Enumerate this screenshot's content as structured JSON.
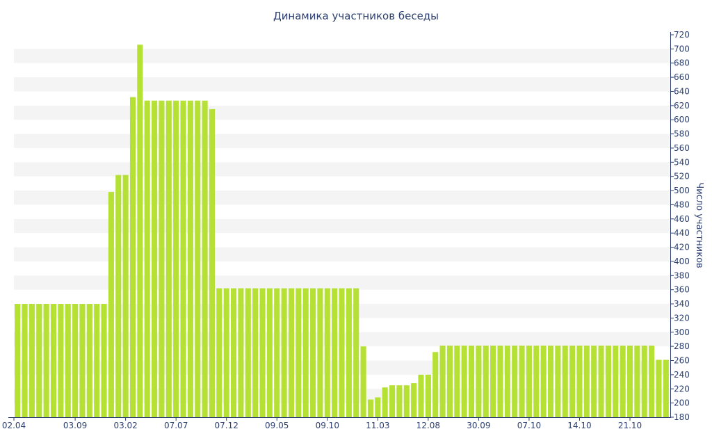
{
  "chart_data": {
    "type": "bar",
    "title": "Динамика участников беседы",
    "ylabel": "Число участников",
    "xlabel": "",
    "ylim": [
      180,
      720
    ],
    "y_ticks": [
      180,
      200,
      220,
      240,
      260,
      280,
      300,
      320,
      340,
      360,
      380,
      400,
      420,
      440,
      460,
      480,
      500,
      520,
      540,
      560,
      580,
      600,
      620,
      640,
      660,
      680,
      700,
      720
    ],
    "x_tick_labels": [
      {
        "index": 0,
        "label": "02.04"
      },
      {
        "index": 8,
        "label": "03.09"
      },
      {
        "index": 15,
        "label": "03.02"
      },
      {
        "index": 22,
        "label": "07.07"
      },
      {
        "index": 29,
        "label": "07.12"
      },
      {
        "index": 36,
        "label": "09.05"
      },
      {
        "index": 43,
        "label": "09.10"
      },
      {
        "index": 50,
        "label": "11.03"
      },
      {
        "index": 57,
        "label": "12.08"
      },
      {
        "index": 64,
        "label": "30.09"
      },
      {
        "index": 71,
        "label": "07.10"
      },
      {
        "index": 78,
        "label": "14.10"
      },
      {
        "index": 85,
        "label": "21.10"
      }
    ],
    "values": [
      340,
      340,
      340,
      340,
      340,
      340,
      340,
      340,
      340,
      340,
      340,
      340,
      340,
      498,
      522,
      522,
      632,
      706,
      627,
      627,
      627,
      627,
      627,
      627,
      627,
      627,
      627,
      615,
      362,
      362,
      362,
      362,
      362,
      362,
      362,
      362,
      362,
      362,
      362,
      362,
      362,
      362,
      362,
      362,
      362,
      362,
      362,
      362,
      280,
      205,
      208,
      222,
      225,
      225,
      225,
      228,
      240,
      240,
      272,
      281,
      281,
      281,
      281,
      281,
      281,
      281,
      281,
      281,
      281,
      281,
      281,
      281,
      281,
      281,
      281,
      281,
      281,
      281,
      281,
      281,
      281,
      281,
      281,
      281,
      281,
      281,
      281,
      281,
      281,
      261,
      261
    ],
    "grid": "alternating horizontal bands",
    "y_axis_position": "right",
    "colors": {
      "bar": "#b5e034",
      "text": "#2b3e6e",
      "band": "#f4f4f4",
      "axis": "#2b3e6e"
    }
  }
}
